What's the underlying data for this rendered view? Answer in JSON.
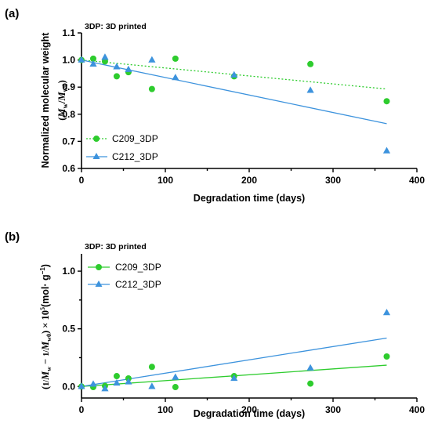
{
  "colors": {
    "c209": "#2ecc2e",
    "c212": "#3d93dd"
  },
  "chart_data": [
    {
      "type": "scatter",
      "panel_label": "(a)",
      "title": "3DP: 3D printed",
      "xlabel": "Degradation time (days)",
      "ylabel_line1": "Normalized molecular weight",
      "ylabel_line2": "(Mw/Mw0)",
      "xlim": [
        0,
        400
      ],
      "ylim": [
        0.6,
        1.1
      ],
      "xticks": [
        0,
        100,
        200,
        300,
        400
      ],
      "yticks": [
        0.6,
        0.7,
        0.8,
        0.9,
        1.0,
        1.1
      ],
      "ytick_labels": [
        "0.6",
        "0.7",
        "0.8",
        "0.9",
        "1.0",
        "1.1"
      ],
      "legend_position": "bottom-left",
      "series": [
        {
          "name": "C209_3DP",
          "marker": "circle",
          "fit": "dotted",
          "x": [
            0,
            14,
            28,
            42,
            56,
            84,
            112,
            182,
            273,
            364
          ],
          "y": [
            1.0,
            1.005,
            0.995,
            0.94,
            0.955,
            0.893,
            1.005,
            0.94,
            0.985,
            0.848
          ],
          "fit_line": [
            [
              0,
              1.0
            ],
            [
              364,
              0.893
            ]
          ]
        },
        {
          "name": "C212_3DP",
          "marker": "triangle",
          "fit": "solid",
          "x": [
            0,
            14,
            28,
            42,
            56,
            84,
            112,
            182,
            273,
            364
          ],
          "y": [
            1.0,
            0.985,
            1.01,
            0.975,
            0.965,
            1.0,
            0.935,
            0.945,
            0.888,
            0.665
          ],
          "fit_line": [
            [
              0,
              1.0
            ],
            [
              364,
              0.765
            ]
          ]
        }
      ]
    },
    {
      "type": "scatter",
      "panel_label": "(b)",
      "title": "3DP: 3D printed",
      "xlabel": "Degradation time (days)",
      "ylabel": "(1/Mw − 1/Mw0) × 10^5 (mol· g^−1)",
      "xlim": [
        0,
        400
      ],
      "ylim": [
        -0.1,
        1.15
      ],
      "xticks": [
        0,
        100,
        200,
        300,
        400
      ],
      "yticks": [
        0.0,
        0.5,
        1.0
      ],
      "ytick_labels": [
        "0.0",
        "0.5",
        "1.0"
      ],
      "legend_position": "top-left",
      "series": [
        {
          "name": "C209_3DP",
          "marker": "circle",
          "fit": "solid",
          "x": [
            0,
            14,
            28,
            42,
            56,
            84,
            112,
            182,
            273,
            364
          ],
          "y": [
            0.0,
            -0.005,
            0.005,
            0.09,
            0.07,
            0.17,
            -0.005,
            0.09,
            0.025,
            0.26
          ],
          "fit_line": [
            [
              0,
              0.0
            ],
            [
              364,
              0.185
            ]
          ]
        },
        {
          "name": "C212_3DP",
          "marker": "triangle",
          "fit": "solid",
          "x": [
            0,
            14,
            28,
            42,
            56,
            84,
            112,
            182,
            273,
            364
          ],
          "y": [
            0.0,
            0.02,
            -0.02,
            0.03,
            0.04,
            0.0,
            0.08,
            0.07,
            0.16,
            0.64
          ],
          "fit_line": [
            [
              0,
              0.0
            ],
            [
              364,
              0.42
            ]
          ]
        }
      ]
    }
  ]
}
